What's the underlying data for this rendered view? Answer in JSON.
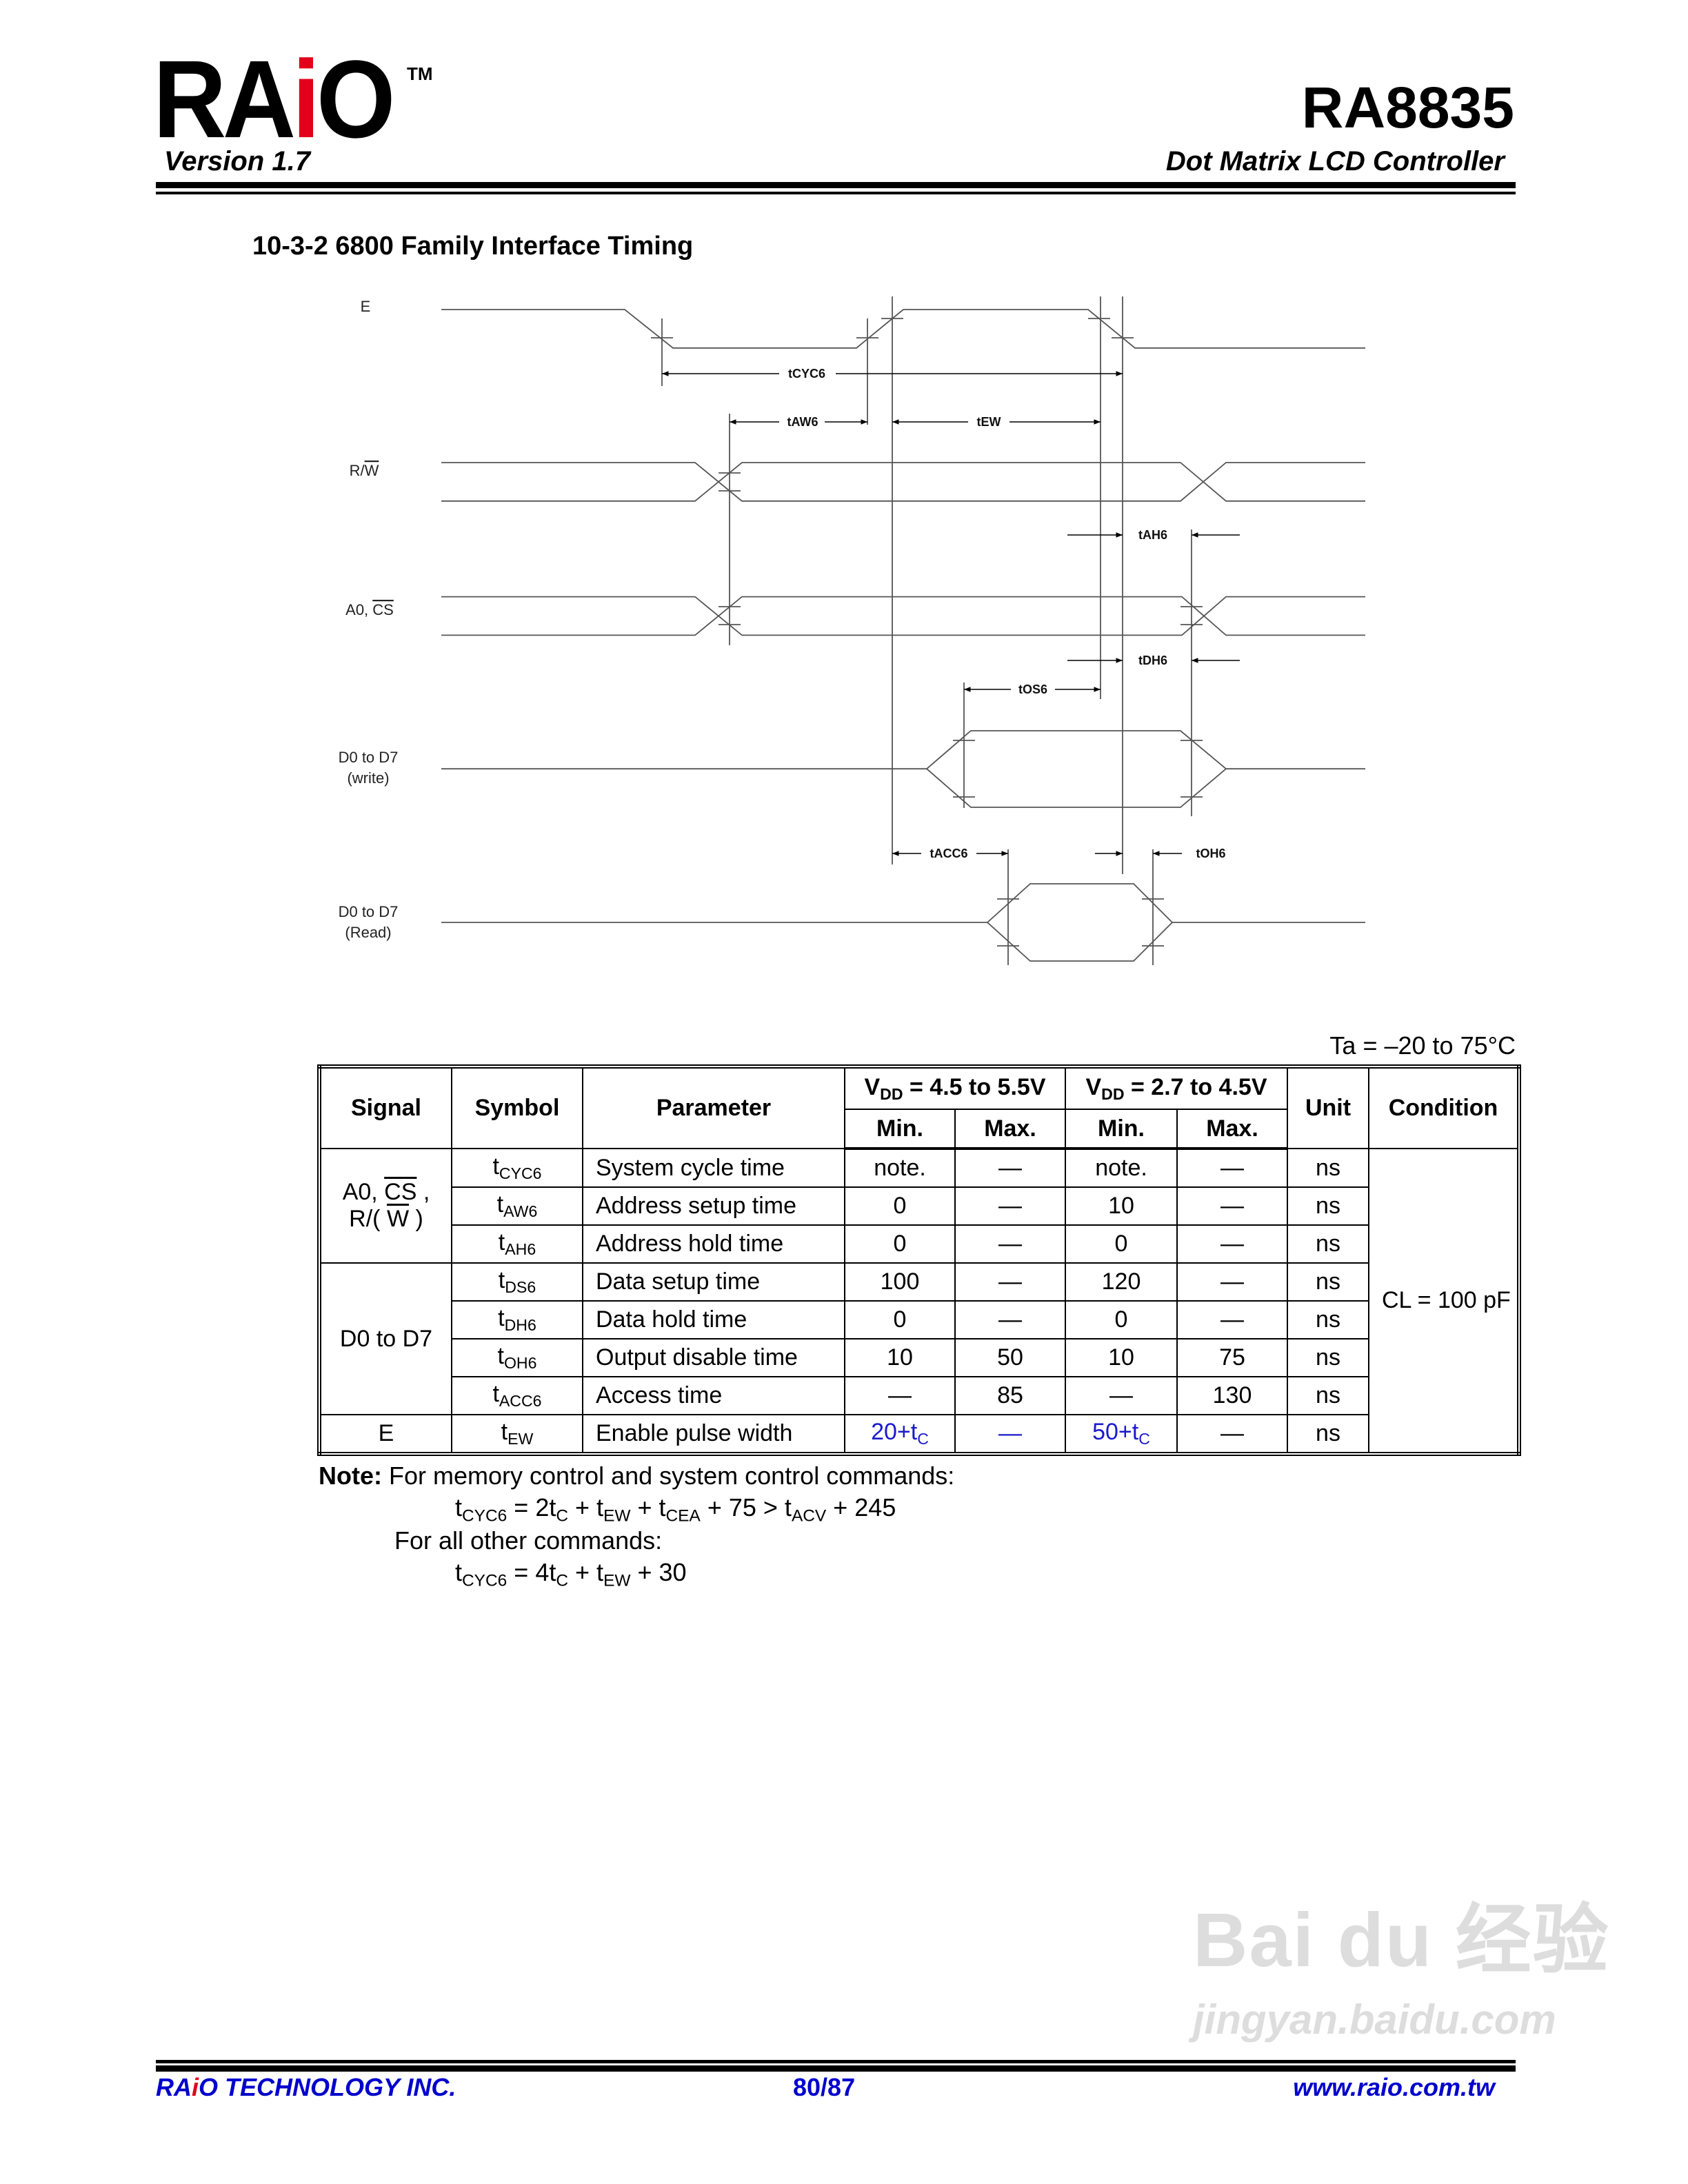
{
  "header": {
    "logo_parts": [
      "RA",
      "i",
      "O"
    ],
    "tm": "TM",
    "version": "Version 1.7",
    "product": "RA8835",
    "subtitle": "Dot Matrix LCD Controller"
  },
  "section_title": "10-3-2 6800 Family Interface Timing",
  "diagram": {
    "signals": {
      "e": "E",
      "rw_prefix": "R/",
      "rw_overline": "W",
      "a0_prefix": "A0, ",
      "a0_overline": "CS",
      "dw_line1": "D0 to D7",
      "dw_line2": "(write)",
      "dr_line1": "D0 to D7",
      "dr_line2": "(Read)"
    },
    "timings": {
      "tcyc6": "tCYC6",
      "taw6": "tAW6",
      "tew": "tEW",
      "tah6": "tAH6",
      "tdh6": "tDH6",
      "tos6": "tOS6",
      "tacc6": "tACC6",
      "toh6": "tOH6"
    }
  },
  "table": {
    "ambient": "Ta = –20 to 75°C",
    "headers": {
      "signal": "Signal",
      "symbol": "Symbol",
      "parameter": "Parameter",
      "vdd1": {
        "v": "V",
        "sub": "DD",
        "rest": " = 4.5 to 5.5V"
      },
      "vdd2": {
        "v": "V",
        "sub": "DD",
        "rest": " = 2.7 to 4.5V"
      },
      "min": "Min.",
      "max": "Max.",
      "unit": "Unit",
      "condition": "Condition"
    },
    "signal_groups": {
      "addr": {
        "l1_prefix": "A0, ",
        "l1_over": "CS",
        "l1_suffix": " ,",
        "l2_prefix": "R/( ",
        "l2_over": "W",
        "l2_suffix": " )"
      },
      "data": "D0 to D7",
      "enable": "E"
    },
    "rows": [
      {
        "sym": "CYC6",
        "param": "System cycle time",
        "min1": "note.",
        "max1": "—",
        "min2": "note.",
        "max2": "—",
        "unit": "ns"
      },
      {
        "sym": "AW6",
        "param": "Address setup time",
        "min1": "0",
        "max1": "—",
        "min2": "10",
        "max2": "—",
        "unit": "ns"
      },
      {
        "sym": "AH6",
        "param": "Address hold time",
        "min1": "0",
        "max1": "—",
        "min2": "0",
        "max2": "—",
        "unit": "ns"
      },
      {
        "sym": "DS6",
        "param": "Data setup time",
        "min1": "100",
        "max1": "—",
        "min2": "120",
        "max2": "—",
        "unit": "ns"
      },
      {
        "sym": "DH6",
        "param": "Data hold time",
        "min1": "0",
        "max1": "—",
        "min2": "0",
        "max2": "—",
        "unit": "ns"
      },
      {
        "sym": "OH6",
        "param": "Output disable time",
        "min1": "10",
        "max1": "50",
        "min2": "10",
        "max2": "75",
        "unit": "ns"
      },
      {
        "sym": "ACC6",
        "param": "Access time",
        "min1": "—",
        "max1": "85",
        "min2": "—",
        "max2": "130",
        "unit": "ns"
      },
      {
        "sym": "EW",
        "param": "Enable pulse width",
        "min1": "20+t",
        "min1_sub": "C",
        "max1": "—",
        "min2": "50+t",
        "min2_sub": "C",
        "max2": "—",
        "unit": "ns",
        "highlight": true
      }
    ],
    "symbol_prefix": "t",
    "condition": "CL = 100 pF",
    "highlight_color": "#1a1acc"
  },
  "note": {
    "label": "Note:",
    "line1": " For memory control and system control commands:",
    "formula1": [
      [
        "t",
        "CYC6"
      ],
      [
        " = 2t",
        "C"
      ],
      [
        " + t",
        "EW"
      ],
      [
        " + t",
        "CEA"
      ],
      [
        " + 75 > t",
        "ACV"
      ],
      [
        " + 245",
        ""
      ]
    ],
    "line2": "For all other commands:",
    "formula2": [
      [
        "t",
        "CYC6"
      ],
      [
        " = 4t",
        "C"
      ],
      [
        " + t",
        "EW"
      ],
      [
        " + 30",
        ""
      ]
    ]
  },
  "footer": {
    "company_parts": [
      "RA",
      "i",
      "O TECHNOLOGY INC."
    ],
    "page": "80/87",
    "website": "www.raio.com.tw",
    "color": "#0000cc"
  },
  "watermark": {
    "brand": "Bai du 经验",
    "url": "jingyan.baidu.com"
  }
}
